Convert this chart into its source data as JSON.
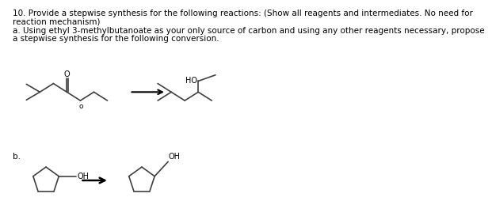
{
  "title_text": "10. Provide a stepwise synthesis for the following reactions: (Show all reagents and intermediates. No need for\nreaction mechanism)",
  "part_a_text": "a. Using ethyl 3-methylbutanoate as your only source of carbon and using any other reagents necessary, propose\na stepwise synthesis for the following conversion.",
  "part_b_text": "b.",
  "bg_color": "#ffffff",
  "line_color": "#404040",
  "text_color": "#000000",
  "font_size_main": 7.5,
  "font_size_chem": 7.0
}
